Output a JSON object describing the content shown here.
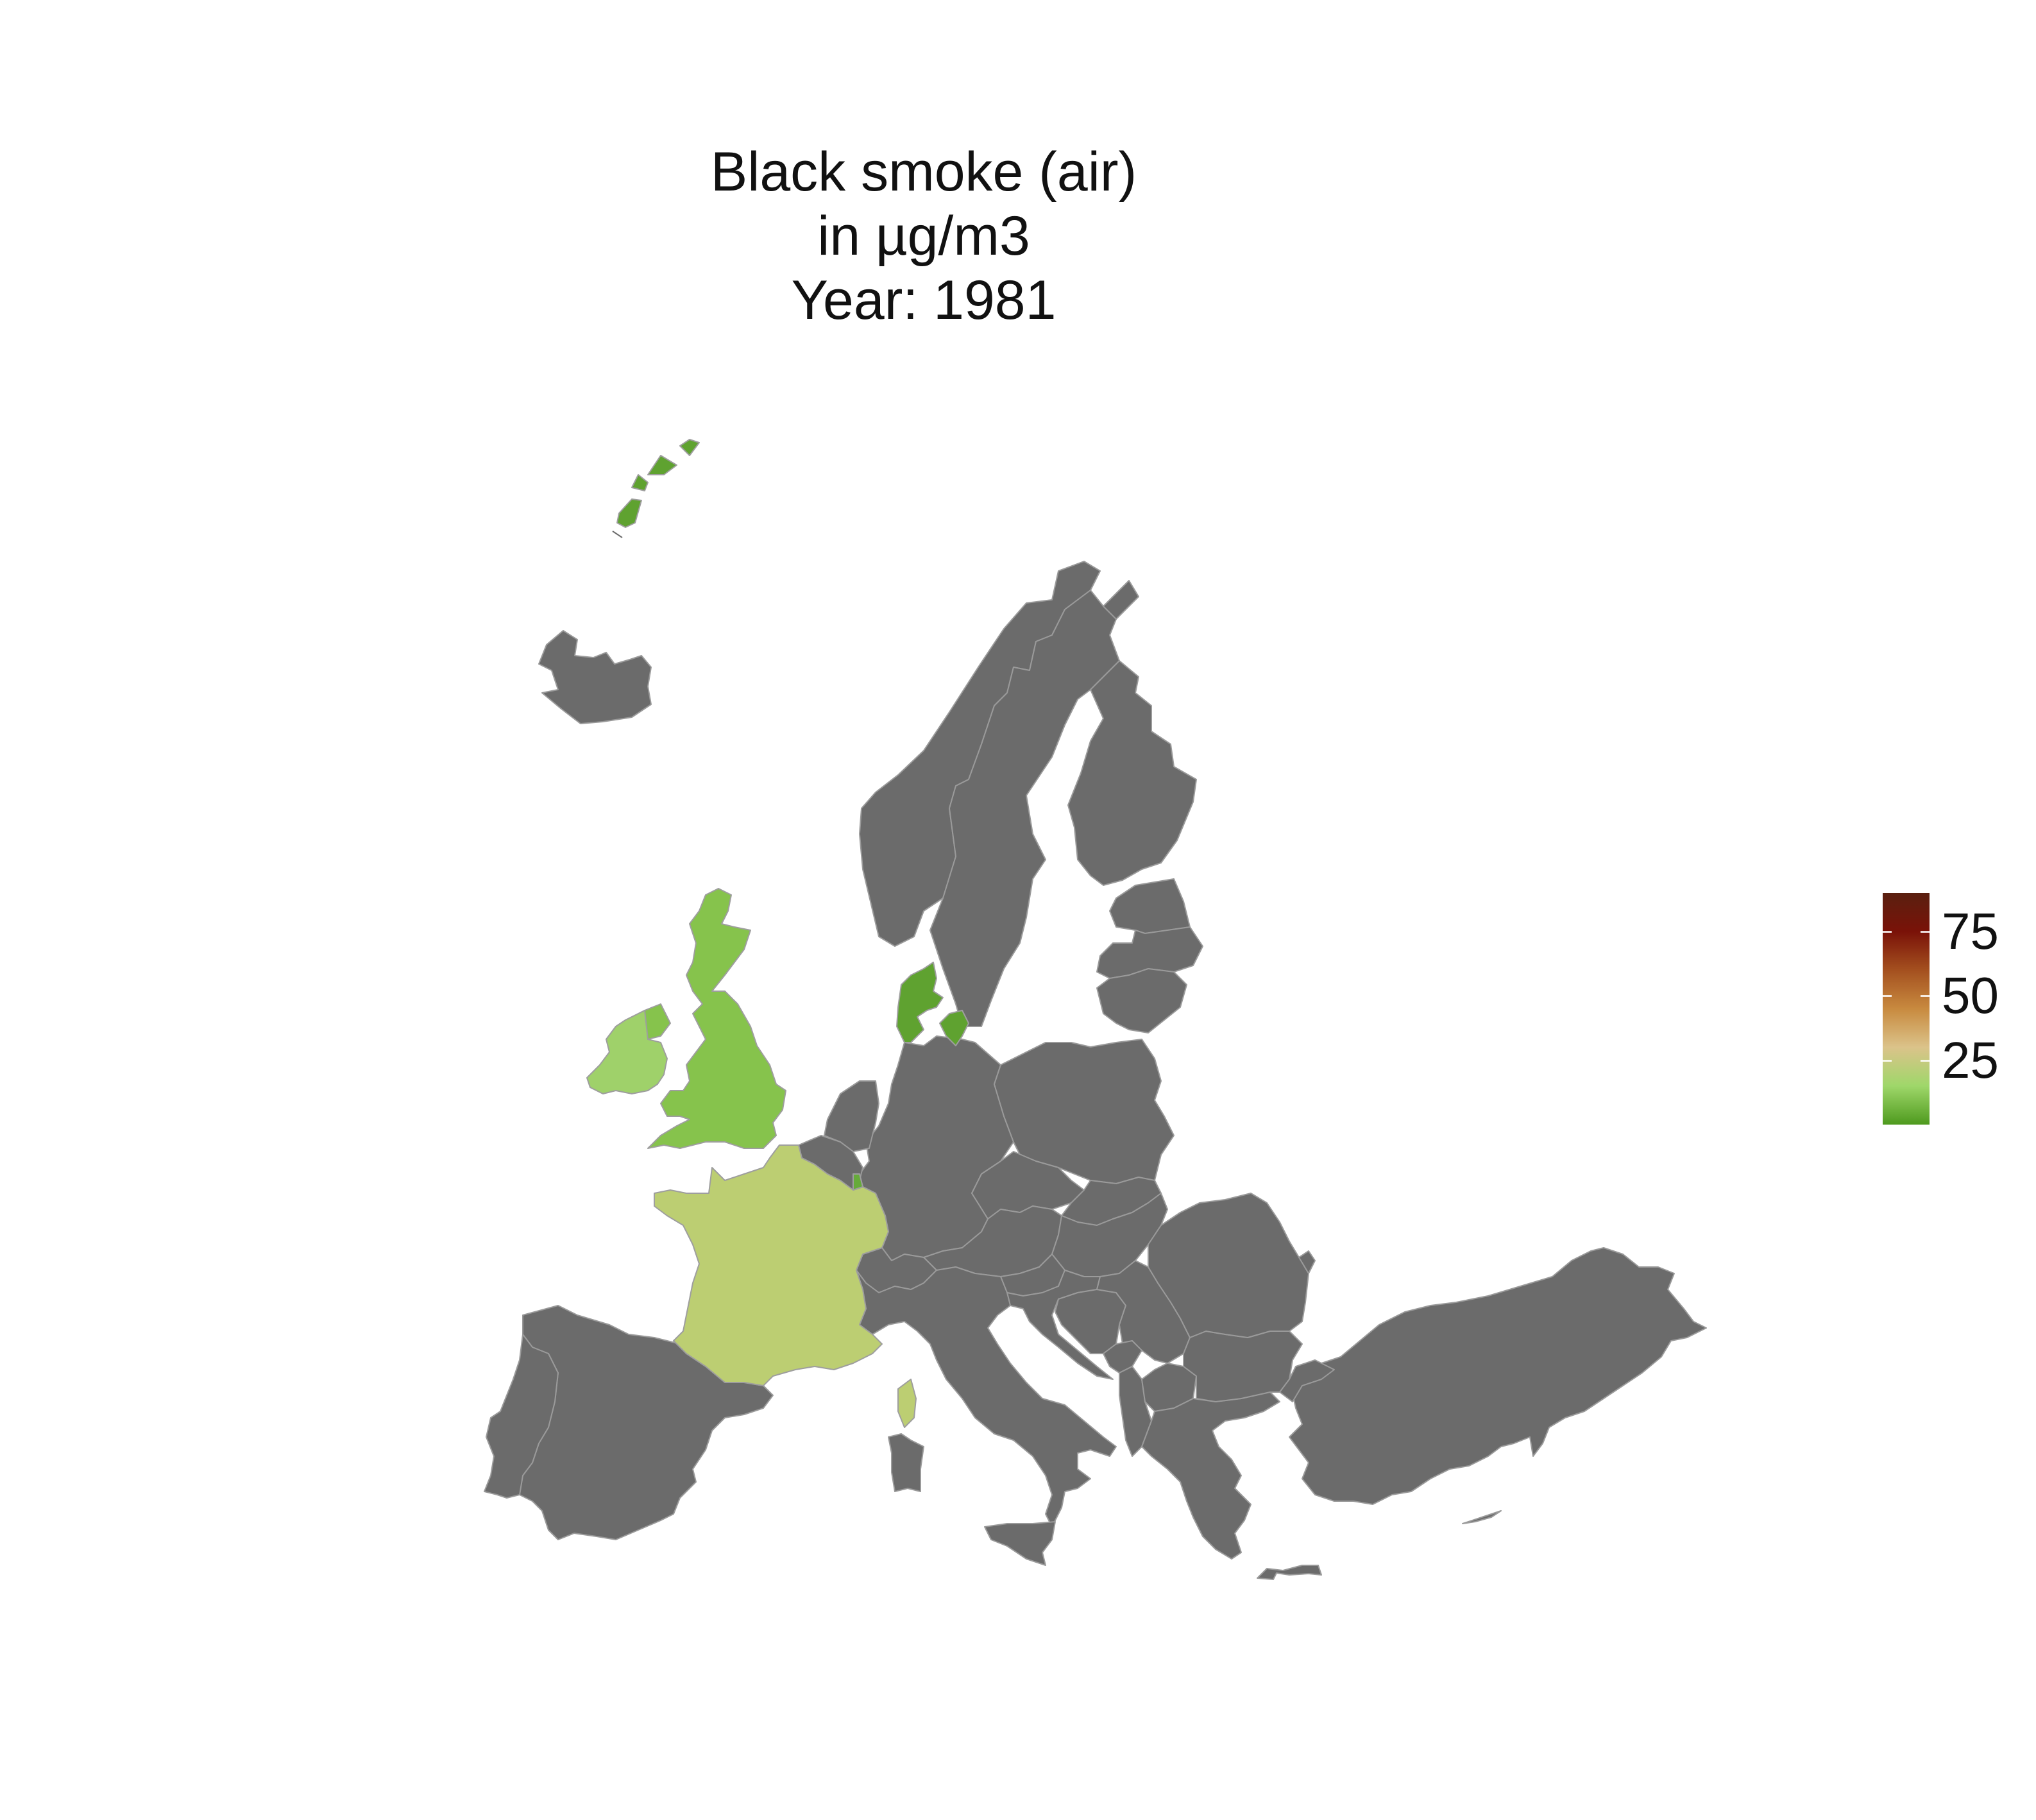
{
  "title": {
    "line1": "Black smoke (air)",
    "line2": "in µg/m3",
    "line3": "Year: 1981"
  },
  "colors": {
    "no_data": "#6b6b6b",
    "border": "#b0b0b0",
    "background": "#ffffff"
  },
  "legend": {
    "ticks": [
      {
        "label": "75",
        "value": 75
      },
      {
        "label": "50",
        "value": 50
      },
      {
        "label": "25",
        "value": 25
      }
    ],
    "min": 0,
    "max": 90,
    "gradient": [
      "#4e9a1e",
      "#9fd76a",
      "#dbc38a",
      "#c88a3f",
      "#a4501f",
      "#7a1208",
      "#5a2010"
    ]
  },
  "countries_with_data": [
    {
      "name": "United Kingdom",
      "value": 18,
      "color": "#86c34c"
    },
    {
      "name": "Ireland",
      "value": 22,
      "color": "#9fd16a"
    },
    {
      "name": "France",
      "value": 30,
      "color": "#bcce72"
    },
    {
      "name": "Denmark",
      "value": 10,
      "color": "#5fa230"
    },
    {
      "name": "Faroe Islands",
      "value": 10,
      "color": "#5fa230"
    },
    {
      "name": "Luxembourg",
      "value": 12,
      "color": "#66aa3a"
    }
  ]
}
